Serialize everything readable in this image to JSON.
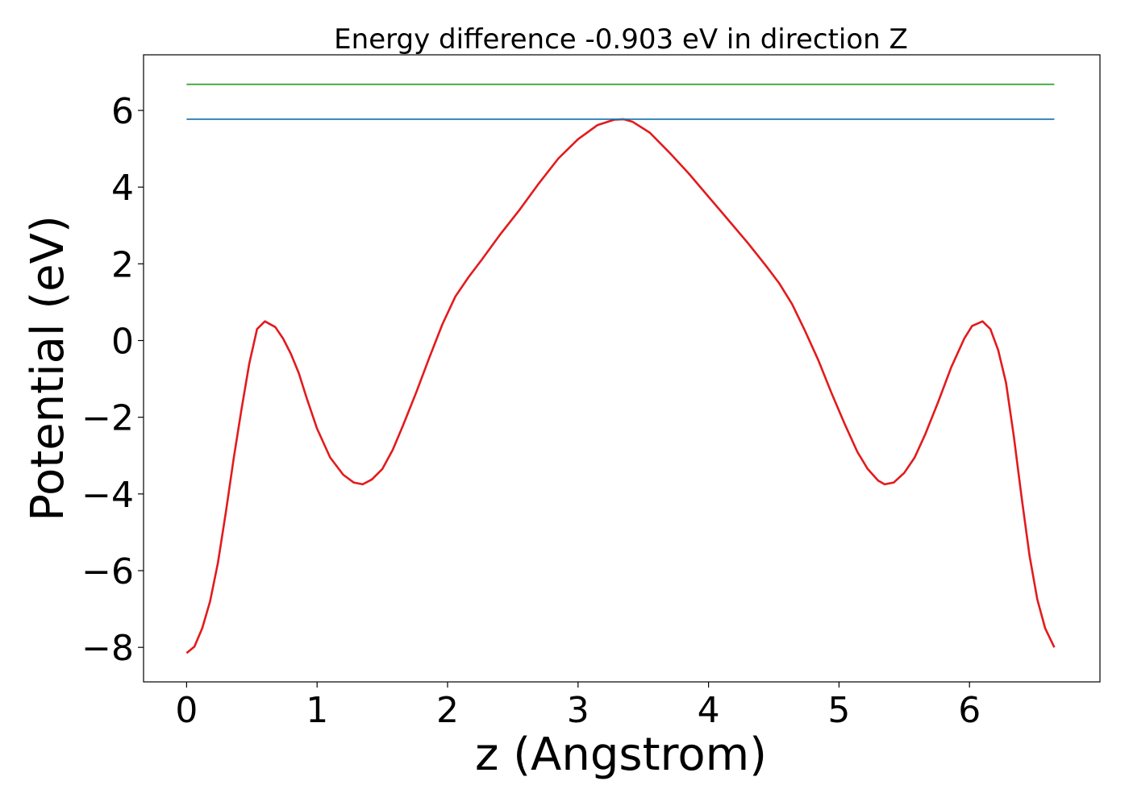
{
  "chart_data": {
    "type": "line",
    "title": "Energy difference -0.903 eV in direction Z",
    "xlabel": "z (Angstrom)",
    "ylabel": "Potential (eV)",
    "xlim": [
      -0.33,
      7.0
    ],
    "ylim": [
      -8.9,
      7.45
    ],
    "xticks": [
      0,
      1,
      2,
      3,
      4,
      5,
      6
    ],
    "yticks": [
      -8,
      -6,
      -4,
      -2,
      0,
      2,
      4,
      6
    ],
    "xtick_labels": [
      "0",
      "1",
      "2",
      "3",
      "4",
      "5",
      "6"
    ],
    "ytick_labels": [
      "−8",
      "−6",
      "−4",
      "−2",
      "0",
      "2",
      "4",
      "6"
    ],
    "grid": false,
    "series": [
      {
        "name": "potential",
        "color": "#e31a1c",
        "x": [
          0.0,
          0.06,
          0.12,
          0.18,
          0.24,
          0.3,
          0.36,
          0.42,
          0.48,
          0.54,
          0.6,
          0.68,
          0.74,
          0.8,
          0.86,
          0.92,
          1.0,
          1.1,
          1.2,
          1.28,
          1.35,
          1.42,
          1.5,
          1.58,
          1.66,
          1.76,
          1.86,
          1.96,
          2.06,
          2.16,
          2.26,
          2.4,
          2.55,
          2.7,
          2.85,
          3.0,
          3.15,
          3.28,
          3.35,
          3.42,
          3.55,
          3.7,
          3.85,
          4.0,
          4.15,
          4.3,
          4.44,
          4.54,
          4.64,
          4.74,
          4.84,
          4.94,
          5.04,
          5.14,
          5.22,
          5.3,
          5.35,
          5.42,
          5.5,
          5.58,
          5.66,
          5.76,
          5.86,
          5.96,
          6.02,
          6.1,
          6.16,
          6.22,
          6.28,
          6.34,
          6.4,
          6.46,
          6.52,
          6.58,
          6.65
        ],
        "y": [
          -8.15,
          -7.98,
          -7.5,
          -6.8,
          -5.8,
          -4.5,
          -3.1,
          -1.8,
          -0.6,
          0.3,
          0.5,
          0.35,
          0.05,
          -0.35,
          -0.85,
          -1.5,
          -2.3,
          -3.05,
          -3.5,
          -3.7,
          -3.75,
          -3.62,
          -3.35,
          -2.85,
          -2.2,
          -1.35,
          -0.45,
          0.42,
          1.15,
          1.65,
          2.1,
          2.75,
          3.4,
          4.1,
          4.75,
          5.25,
          5.62,
          5.76,
          5.77,
          5.7,
          5.42,
          4.9,
          4.35,
          3.75,
          3.15,
          2.55,
          1.95,
          1.5,
          0.95,
          0.25,
          -0.5,
          -1.35,
          -2.15,
          -2.9,
          -3.35,
          -3.65,
          -3.75,
          -3.7,
          -3.45,
          -3.05,
          -2.45,
          -1.6,
          -0.7,
          0.05,
          0.38,
          0.5,
          0.3,
          -0.25,
          -1.1,
          -2.5,
          -4.1,
          -5.6,
          -6.75,
          -7.5,
          -8.0
        ]
      },
      {
        "name": "blue-line",
        "color": "#1f77b4",
        "x": [
          0.0,
          6.65
        ],
        "y": [
          5.77,
          5.77
        ]
      },
      {
        "name": "green-line",
        "color": "#2ca02c",
        "x": [
          0.0,
          6.65
        ],
        "y": [
          6.68,
          6.68
        ]
      }
    ]
  }
}
